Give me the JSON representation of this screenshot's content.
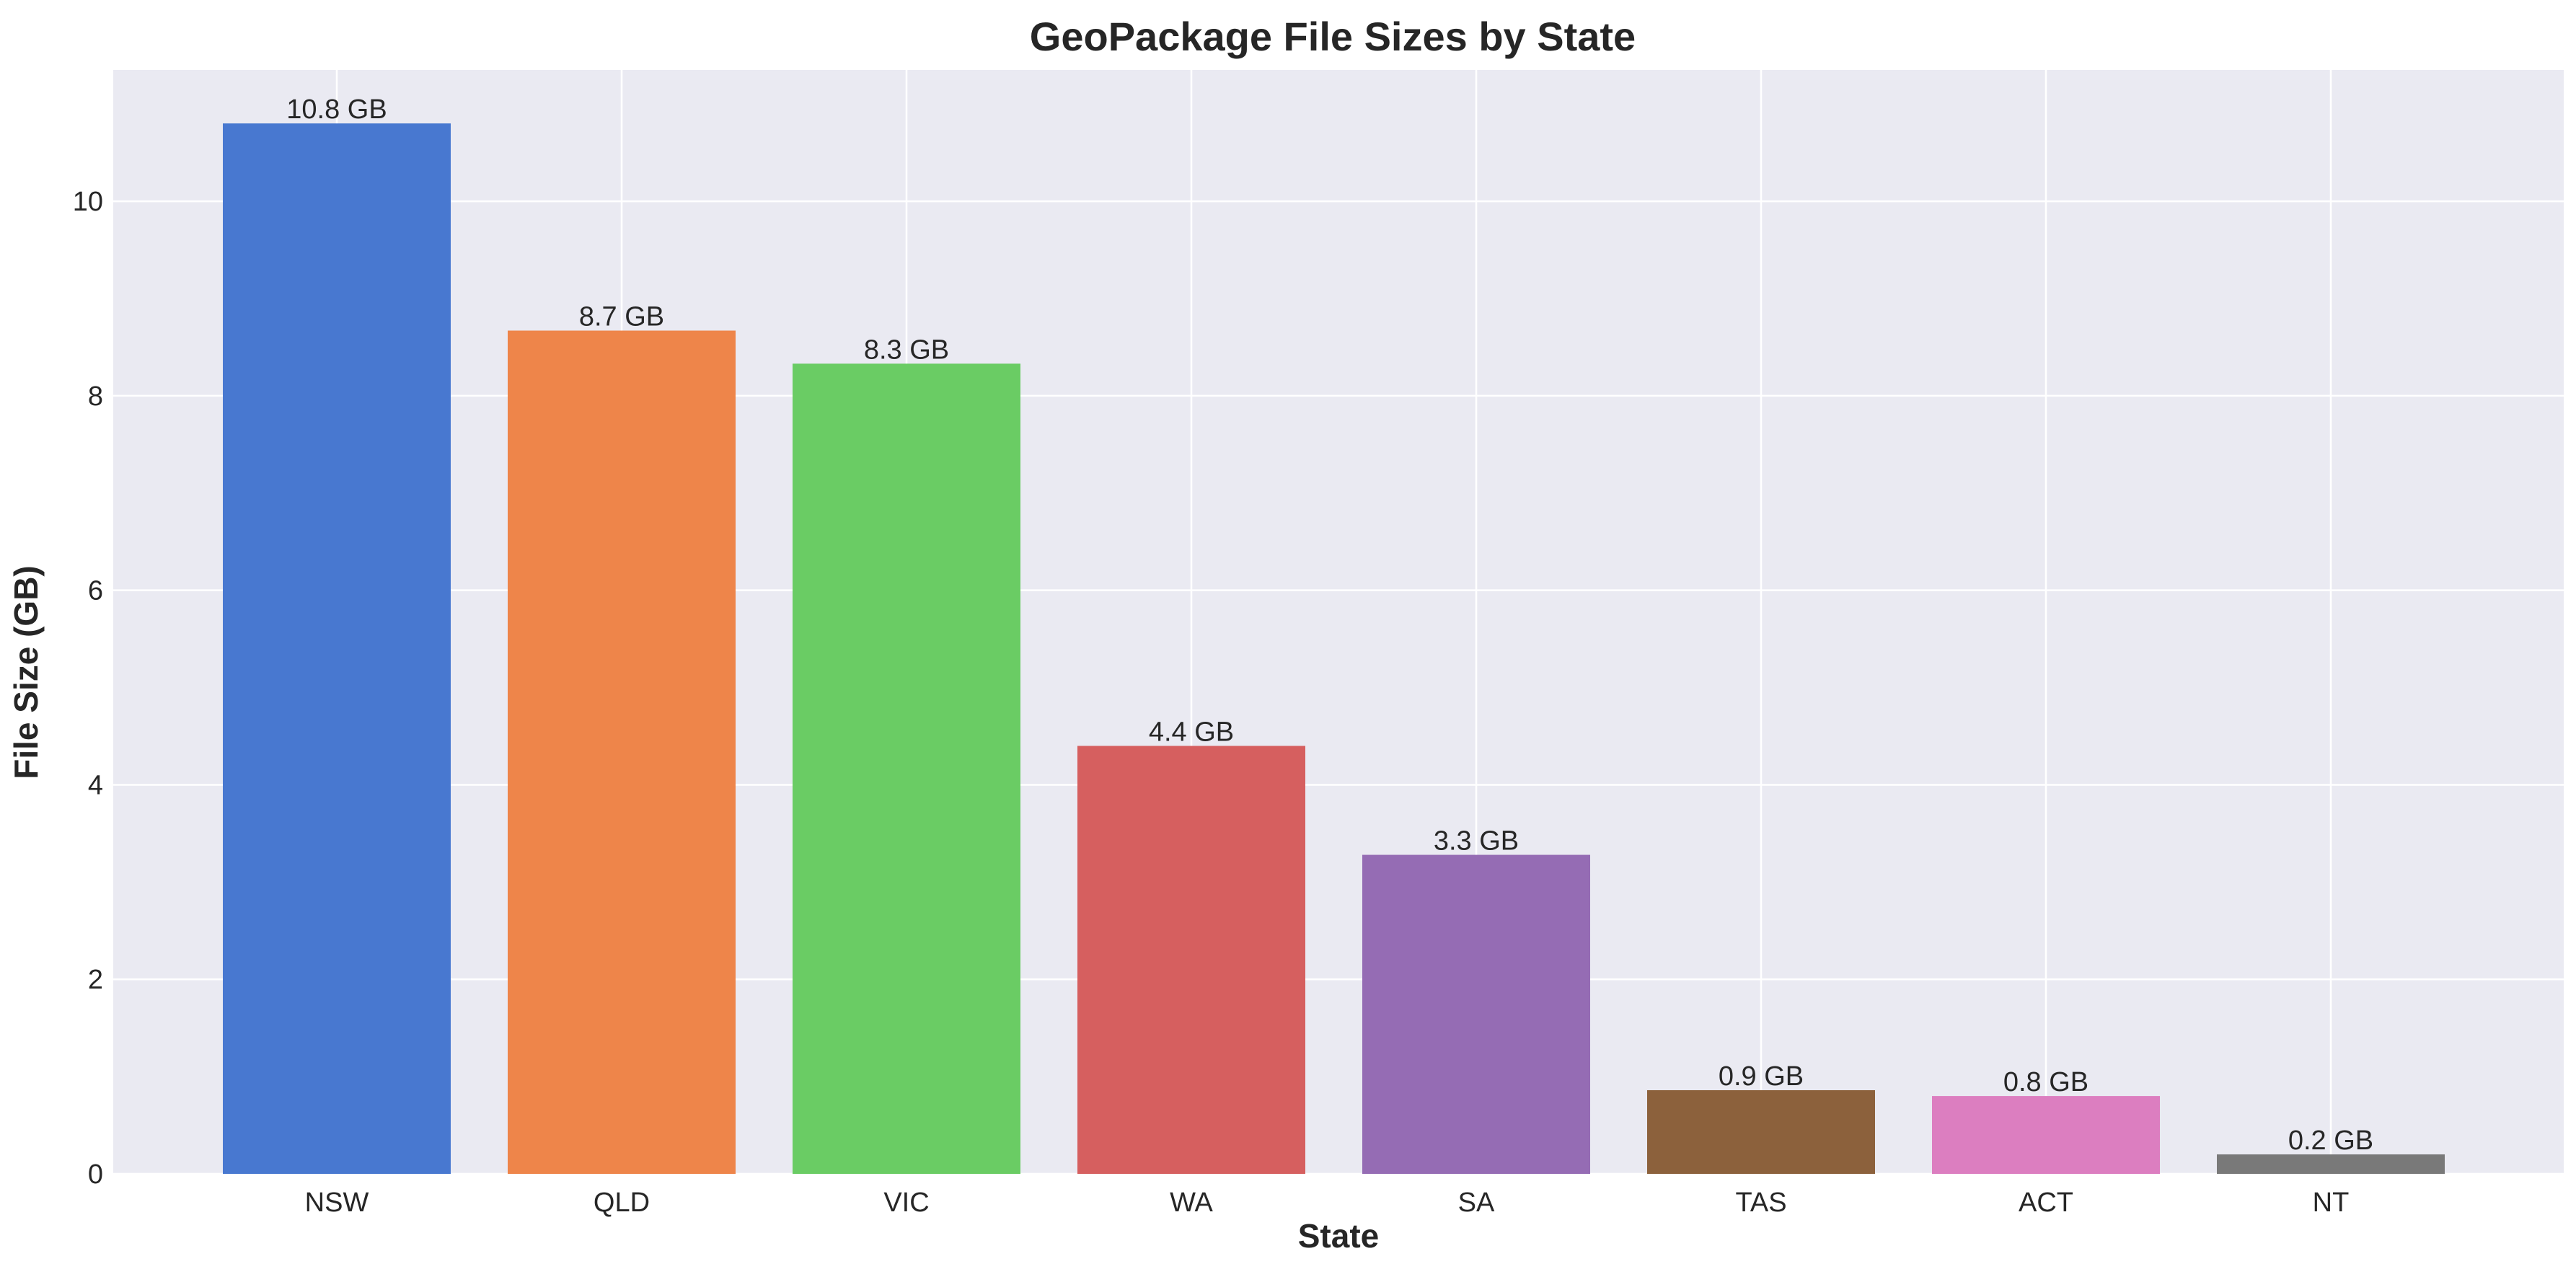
{
  "chart_data": {
    "type": "bar",
    "title": "GeoPackage File Sizes by State",
    "xlabel": "State",
    "ylabel": "File Size (GB)",
    "categories": [
      "NSW",
      "QLD",
      "VIC",
      "WA",
      "SA",
      "TAS",
      "ACT",
      "NT"
    ],
    "values": [
      10.8,
      8.67,
      8.33,
      4.4,
      3.28,
      0.86,
      0.8,
      0.2
    ],
    "value_labels": [
      "10.8 GB",
      "8.7 GB",
      "8.3 GB",
      "4.4 GB",
      "3.3 GB",
      "0.9 GB",
      "0.8 GB",
      "0.2 GB"
    ],
    "colors": [
      "#4878d0",
      "#ee854a",
      "#6acc64",
      "#d65f5f",
      "#956cb4",
      "#8c613c",
      "#dc7ec0",
      "#797979"
    ],
    "ylim": [
      0,
      11.35
    ],
    "yticks": [
      0,
      2,
      4,
      6,
      8,
      10
    ],
    "ytick_labels": [
      "0",
      "2",
      "4",
      "6",
      "8",
      "10"
    ],
    "grid": true,
    "legend": "none",
    "plot_background": "#eaeaf2",
    "grid_color": "#ffffff"
  }
}
